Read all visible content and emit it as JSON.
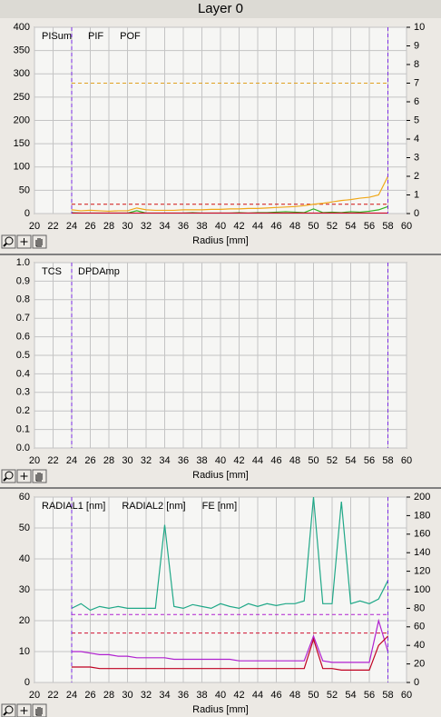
{
  "title": "Layer 0",
  "chart_data": [
    {
      "type": "line",
      "xlabel": "Radius [mm]",
      "xlim": [
        20,
        60
      ],
      "xticks": [
        20,
        22,
        24,
        26,
        28,
        30,
        32,
        34,
        36,
        38,
        40,
        42,
        44,
        46,
        48,
        50,
        52,
        54,
        56,
        58,
        60
      ],
      "ylim": [
        0,
        400
      ],
      "yticks": [
        0,
        50,
        100,
        150,
        200,
        250,
        300,
        350,
        400
      ],
      "y2lim": [
        0,
        10
      ],
      "y2ticks": [
        0,
        1,
        2,
        3,
        4,
        5,
        6,
        7,
        8,
        9,
        10
      ],
      "grid": true,
      "legend": "top-left",
      "vlines": [
        24,
        58
      ],
      "vline_color": "#7a2be2",
      "hlines": [
        {
          "value": 280,
          "color": "#e0a020"
        },
        {
          "value": 20,
          "color": "#d01010"
        }
      ],
      "x": [
        24,
        25,
        26,
        27,
        28,
        29,
        30,
        31,
        32,
        33,
        34,
        35,
        36,
        37,
        38,
        39,
        40,
        41,
        42,
        43,
        44,
        45,
        46,
        47,
        48,
        49,
        50,
        51,
        52,
        53,
        54,
        55,
        56,
        57,
        58
      ],
      "series": [
        {
          "name": "PISum",
          "color": "#f0a818",
          "values": [
            8,
            6,
            7,
            6,
            5,
            6,
            6,
            12,
            8,
            7,
            7,
            7,
            8,
            8,
            8,
            9,
            9,
            10,
            10,
            11,
            11,
            12,
            13,
            14,
            15,
            17,
            20,
            22,
            25,
            28,
            30,
            33,
            35,
            40,
            80
          ]
        },
        {
          "name": "PIF",
          "color": "#30b020",
          "values": [
            2,
            1,
            1,
            1,
            1,
            1,
            1,
            6,
            1,
            1,
            1,
            1,
            1,
            2,
            1,
            1,
            1,
            1,
            2,
            1,
            2,
            2,
            3,
            4,
            3,
            2,
            10,
            2,
            3,
            2,
            4,
            3,
            5,
            8,
            15
          ]
        },
        {
          "name": "POF",
          "color": "#d01030",
          "values": [
            1,
            1,
            1,
            1,
            1,
            1,
            1,
            1,
            1,
            1,
            1,
            1,
            1,
            1,
            1,
            1,
            1,
            1,
            1,
            1,
            1,
            1,
            1,
            1,
            1,
            1,
            1,
            1,
            1,
            1,
            1,
            1,
            1,
            1,
            1
          ]
        }
      ]
    },
    {
      "type": "line",
      "xlabel": "Radius [mm]",
      "xlim": [
        20,
        60
      ],
      "xticks": [
        20,
        22,
        24,
        26,
        28,
        30,
        32,
        34,
        36,
        38,
        40,
        42,
        44,
        46,
        48,
        50,
        52,
        54,
        56,
        58,
        60
      ],
      "ylim": [
        0,
        1
      ],
      "yticks": [
        {
          "value": 0,
          "label": "0.0"
        },
        0.1,
        0.2,
        0.3,
        0.4,
        0.5,
        0.6,
        0.7,
        0.8,
        0.9,
        {
          "value": 1,
          "label": "1.0"
        }
      ],
      "grid": true,
      "legend": "top-left",
      "vlines": [
        24,
        58
      ],
      "vline_color": "#7a2be2",
      "series": [
        {
          "name": "TCS",
          "color": "#207020"
        },
        {
          "name": "DPDAmp",
          "color": "#d01030"
        }
      ]
    },
    {
      "type": "line",
      "xlabel": "Radius [mm]",
      "xlim": [
        20,
        60
      ],
      "xticks": [
        20,
        22,
        24,
        26,
        28,
        30,
        32,
        34,
        36,
        38,
        40,
        42,
        44,
        46,
        48,
        50,
        52,
        54,
        56,
        58,
        60
      ],
      "ylim": [
        0,
        60
      ],
      "yticks": [
        0,
        10,
        20,
        30,
        40,
        50,
        60
      ],
      "y2lim": [
        0,
        200
      ],
      "y2ticks": [
        0,
        20,
        40,
        60,
        80,
        100,
        120,
        140,
        160,
        180,
        200
      ],
      "grid": true,
      "legend": "top-left",
      "vlines": [
        24,
        58
      ],
      "vline_color": "#7a2be2",
      "hlines": [
        {
          "value": 22,
          "color": "#b020d0"
        },
        {
          "value": 16,
          "color": "#d01030"
        }
      ],
      "x": [
        24,
        25,
        26,
        27,
        28,
        29,
        30,
        31,
        32,
        33,
        34,
        35,
        36,
        37,
        38,
        39,
        40,
        41,
        42,
        43,
        44,
        45,
        46,
        47,
        48,
        49,
        50,
        51,
        52,
        53,
        54,
        55,
        56,
        57,
        58
      ],
      "series": [
        {
          "name": "RADIAL1 [nm]",
          "color": "#b020d0",
          "values": [
            10,
            10,
            9.5,
            9,
            9,
            8.5,
            8.5,
            8,
            8,
            8,
            8,
            7.5,
            7.5,
            7.5,
            7.5,
            7.5,
            7.5,
            7.5,
            7,
            7,
            7,
            7,
            7,
            7,
            7,
            7,
            15,
            7,
            6.5,
            6.5,
            6.5,
            6.5,
            6.5,
            20,
            10
          ]
        },
        {
          "name": "RADIAL2 [nm]",
          "color": "#c00020",
          "values": [
            5,
            5,
            5,
            4.5,
            4.5,
            4.5,
            4.5,
            4.5,
            4.5,
            4.5,
            4.5,
            4.5,
            4.5,
            4.5,
            4.5,
            4.5,
            4.5,
            4.5,
            4.5,
            4.5,
            4.5,
            4.5,
            4.5,
            4.5,
            4.5,
            4.5,
            14,
            4.5,
            4.5,
            4,
            4,
            4,
            4,
            12,
            15
          ]
        },
        {
          "name": "FE [nm]",
          "color": "#20a888",
          "axis": "y2",
          "values": [
            80,
            85,
            78,
            82,
            80,
            82,
            80,
            80,
            80,
            80,
            170,
            82,
            80,
            84,
            82,
            80,
            85,
            82,
            80,
            85,
            82,
            85,
            83,
            85,
            85,
            88,
            200,
            85,
            85,
            195,
            85,
            88,
            85,
            90,
            110
          ]
        }
      ]
    }
  ]
}
